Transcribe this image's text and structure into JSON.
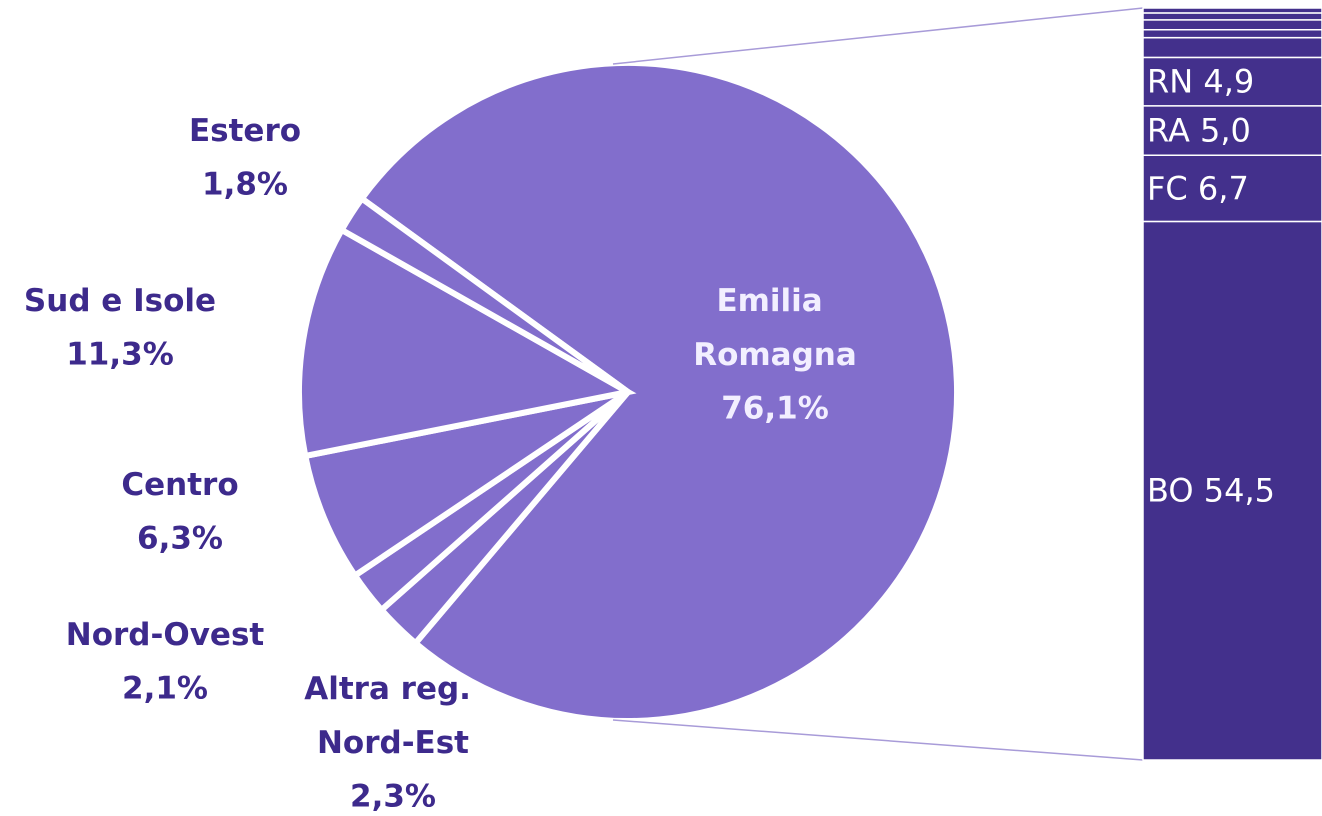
{
  "chart_data": {
    "type": "pie-of-bar",
    "pie": {
      "categories": [
        "Emilia Romagna",
        "Altra reg. Nord-Est",
        "Nord-Ovest",
        "Centro",
        "Sud e Isole",
        "Estero"
      ],
      "values": [
        76.1,
        2.3,
        2.1,
        6.3,
        11.3,
        1.8
      ],
      "value_labels": [
        "76,1%",
        "2,3%",
        "2,1%",
        "6,3%",
        "11,3%",
        "1,8%"
      ],
      "color": "#826ecc"
    },
    "bar": {
      "categories": [
        "BO",
        "FC",
        "RA",
        "RN",
        null,
        null,
        null,
        null,
        null
      ],
      "values": [
        54.5,
        6.7,
        5.0,
        4.9,
        2.0,
        0.8,
        1.0,
        0.7,
        0.5
      ],
      "value_labels": [
        "54,5",
        "6,7",
        "5,0",
        "4,9",
        null,
        null,
        null,
        null,
        null
      ],
      "color": "#43308c"
    }
  }
}
